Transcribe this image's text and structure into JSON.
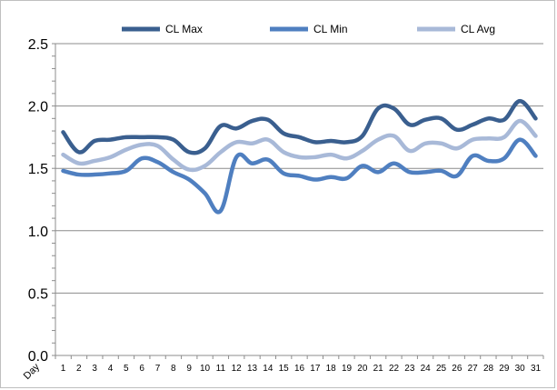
{
  "chart_data": {
    "type": "line",
    "title": "",
    "xlabel": "Day",
    "ylabel": "",
    "ylim": [
      0,
      2.5
    ],
    "yticks": [
      "0.0",
      "0.5",
      "1.0",
      "1.5",
      "2.0",
      "2.5"
    ],
    "grid": true,
    "legend_position": "top",
    "categories": [
      "1",
      "2",
      "3",
      "4",
      "5",
      "6",
      "7",
      "8",
      "9",
      "10",
      "11",
      "12",
      "13",
      "14",
      "15",
      "16",
      "17",
      "18",
      "19",
      "20",
      "21",
      "22",
      "23",
      "24",
      "25",
      "26",
      "27",
      "28",
      "29",
      "30",
      "31"
    ],
    "series": [
      {
        "name": "CL Max",
        "color": "#3a5f8f",
        "values": [
          1.79,
          1.63,
          1.72,
          1.73,
          1.75,
          1.75,
          1.75,
          1.73,
          1.63,
          1.66,
          1.84,
          1.82,
          1.88,
          1.89,
          1.78,
          1.75,
          1.71,
          1.72,
          1.71,
          1.76,
          1.98,
          1.98,
          1.85,
          1.89,
          1.9,
          1.81,
          1.85,
          1.9,
          1.89,
          2.04,
          1.9
        ]
      },
      {
        "name": "CL Min",
        "color": "#4f7fc0",
        "values": [
          1.48,
          1.45,
          1.45,
          1.46,
          1.48,
          1.58,
          1.55,
          1.47,
          1.41,
          1.3,
          1.16,
          1.59,
          1.54,
          1.57,
          1.46,
          1.44,
          1.41,
          1.43,
          1.42,
          1.52,
          1.47,
          1.54,
          1.47,
          1.47,
          1.48,
          1.44,
          1.6,
          1.56,
          1.58,
          1.73,
          1.6
        ]
      },
      {
        "name": "CL Avg",
        "color": "#a8b9d8",
        "values": [
          1.61,
          1.54,
          1.56,
          1.59,
          1.65,
          1.69,
          1.68,
          1.57,
          1.49,
          1.52,
          1.63,
          1.71,
          1.7,
          1.73,
          1.63,
          1.59,
          1.59,
          1.61,
          1.58,
          1.64,
          1.73,
          1.76,
          1.64,
          1.7,
          1.7,
          1.66,
          1.73,
          1.74,
          1.75,
          1.88,
          1.76
        ]
      }
    ]
  }
}
